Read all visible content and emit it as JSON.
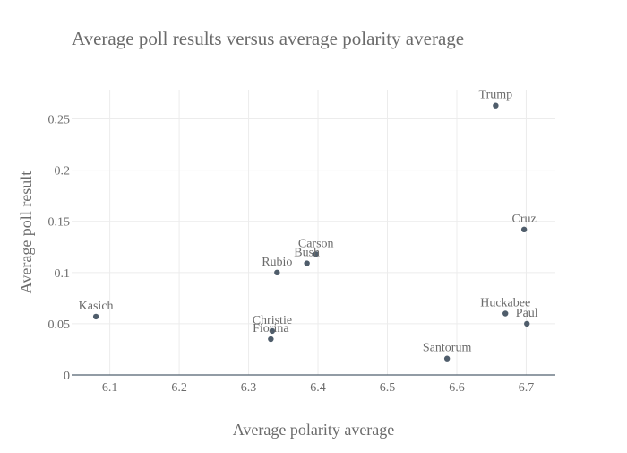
{
  "chart_data": {
    "type": "scatter",
    "title": "Average poll results versus average polarity average",
    "xlabel": "Average polarity average",
    "ylabel": "Average poll result",
    "xlim": [
      6.045,
      6.742
    ],
    "ylim": [
      0,
      0.2785
    ],
    "x_ticks": [
      6.1,
      6.2,
      6.3,
      6.4,
      6.5,
      6.6,
      6.7
    ],
    "x_tick_labels": [
      "6.1",
      "6.2",
      "6.3",
      "6.4",
      "6.5",
      "6.6",
      "6.7"
    ],
    "y_ticks": [
      0,
      0.05,
      0.1,
      0.15,
      0.2,
      0.25
    ],
    "y_tick_labels": [
      "0",
      "0.05",
      "0.1",
      "0.15",
      "0.2",
      "0.25"
    ],
    "grid": true,
    "marker_color": "#4f5d6b",
    "points": [
      {
        "label": "Trump",
        "x": 6.656,
        "y": 0.263
      },
      {
        "label": "Cruz",
        "x": 6.697,
        "y": 0.142
      },
      {
        "label": "Carson",
        "x": 6.397,
        "y": 0.118
      },
      {
        "label": "Bush",
        "x": 6.384,
        "y": 0.109
      },
      {
        "label": "Rubio",
        "x": 6.341,
        "y": 0.1
      },
      {
        "label": "Kasich",
        "x": 6.08,
        "y": 0.057
      },
      {
        "label": "Huckabee",
        "x": 6.67,
        "y": 0.06
      },
      {
        "label": "Paul",
        "x": 6.701,
        "y": 0.05
      },
      {
        "label": "Christie",
        "x": 6.334,
        "y": 0.043
      },
      {
        "label": "Fiorina",
        "x": 6.332,
        "y": 0.035
      },
      {
        "label": "Santorum",
        "x": 6.586,
        "y": 0.016
      }
    ]
  }
}
